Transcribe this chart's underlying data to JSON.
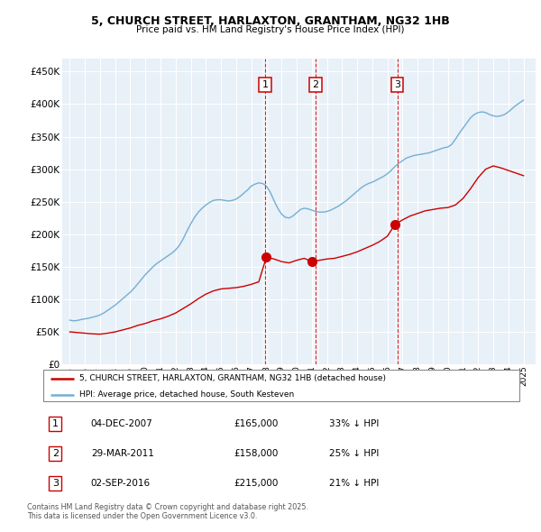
{
  "title": "5, CHURCH STREET, HARLAXTON, GRANTHAM, NG32 1HB",
  "subtitle": "Price paid vs. HM Land Registry's House Price Index (HPI)",
  "ylim": [
    0,
    470000
  ],
  "yticks": [
    0,
    50000,
    100000,
    150000,
    200000,
    250000,
    300000,
    350000,
    400000,
    450000
  ],
  "ytick_labels": [
    "£0",
    "£50K",
    "£100K",
    "£150K",
    "£200K",
    "£250K",
    "£300K",
    "£350K",
    "£400K",
    "£450K"
  ],
  "xlim_start": 1994.5,
  "xlim_end": 2025.8,
  "hpi_color": "#74afd3",
  "price_color": "#cc0000",
  "marker_color": "#cc0000",
  "vline_color": "#cc0000",
  "bg_color": "#e8f0f8",
  "grid_color": "#ffffff",
  "transactions": [
    {
      "id": 1,
      "date": "04-DEC-2007",
      "year": 2007.92,
      "price": 165000,
      "pct": "33% ↓ HPI"
    },
    {
      "id": 2,
      "date": "29-MAR-2011",
      "year": 2011.25,
      "price": 158000,
      "pct": "25% ↓ HPI"
    },
    {
      "id": 3,
      "date": "02-SEP-2016",
      "year": 2016.67,
      "price": 215000,
      "pct": "21% ↓ HPI"
    }
  ],
  "legend_label_price": "5, CHURCH STREET, HARLAXTON, GRANTHAM, NG32 1HB (detached house)",
  "legend_label_hpi": "HPI: Average price, detached house, South Kesteven",
  "footer": "Contains HM Land Registry data © Crown copyright and database right 2025.\nThis data is licensed under the Open Government Licence v3.0.",
  "hpi_data_x": [
    1995.0,
    1995.25,
    1995.5,
    1995.75,
    1996.0,
    1996.25,
    1996.5,
    1996.75,
    1997.0,
    1997.25,
    1997.5,
    1997.75,
    1998.0,
    1998.25,
    1998.5,
    1998.75,
    1999.0,
    1999.25,
    1999.5,
    1999.75,
    2000.0,
    2000.25,
    2000.5,
    2000.75,
    2001.0,
    2001.25,
    2001.5,
    2001.75,
    2002.0,
    2002.25,
    2002.5,
    2002.75,
    2003.0,
    2003.25,
    2003.5,
    2003.75,
    2004.0,
    2004.25,
    2004.5,
    2004.75,
    2005.0,
    2005.25,
    2005.5,
    2005.75,
    2006.0,
    2006.25,
    2006.5,
    2006.75,
    2007.0,
    2007.25,
    2007.5,
    2007.75,
    2008.0,
    2008.25,
    2008.5,
    2008.75,
    2009.0,
    2009.25,
    2009.5,
    2009.75,
    2010.0,
    2010.25,
    2010.5,
    2010.75,
    2011.0,
    2011.25,
    2011.5,
    2011.75,
    2012.0,
    2012.25,
    2012.5,
    2012.75,
    2013.0,
    2013.25,
    2013.5,
    2013.75,
    2014.0,
    2014.25,
    2014.5,
    2014.75,
    2015.0,
    2015.25,
    2015.5,
    2015.75,
    2016.0,
    2016.25,
    2016.5,
    2016.75,
    2017.0,
    2017.25,
    2017.5,
    2017.75,
    2018.0,
    2018.25,
    2018.5,
    2018.75,
    2019.0,
    2019.25,
    2019.5,
    2019.75,
    2020.0,
    2020.25,
    2020.5,
    2020.75,
    2021.0,
    2021.25,
    2021.5,
    2021.75,
    2022.0,
    2022.25,
    2022.5,
    2022.75,
    2023.0,
    2023.25,
    2023.5,
    2023.75,
    2024.0,
    2024.25,
    2024.5,
    2024.75,
    2025.0
  ],
  "hpi_data_y": [
    68000,
    67000,
    67500,
    69000,
    70000,
    71000,
    72500,
    74000,
    76000,
    79000,
    83000,
    87000,
    91000,
    96000,
    101000,
    106000,
    111000,
    117000,
    124000,
    131000,
    138000,
    144000,
    150000,
    155000,
    159000,
    163000,
    167000,
    171000,
    176000,
    183000,
    193000,
    205000,
    216000,
    226000,
    234000,
    240000,
    245000,
    249000,
    252000,
    253000,
    253000,
    252000,
    251000,
    252000,
    254000,
    258000,
    263000,
    268000,
    274000,
    277000,
    279000,
    278000,
    274000,
    265000,
    252000,
    240000,
    231000,
    226000,
    225000,
    228000,
    233000,
    238000,
    240000,
    239000,
    237000,
    235000,
    234000,
    234000,
    235000,
    237000,
    240000,
    243000,
    247000,
    251000,
    256000,
    261000,
    266000,
    271000,
    275000,
    278000,
    280000,
    283000,
    286000,
    289000,
    293000,
    298000,
    304000,
    309000,
    313000,
    317000,
    319000,
    321000,
    322000,
    323000,
    324000,
    325000,
    327000,
    329000,
    331000,
    333000,
    334000,
    338000,
    346000,
    355000,
    363000,
    371000,
    379000,
    384000,
    387000,
    388000,
    387000,
    384000,
    382000,
    381000,
    382000,
    384000,
    388000,
    393000,
    398000,
    402000,
    406000
  ],
  "price_data_x": [
    1995.0,
    1995.5,
    1996.0,
    1996.5,
    1997.0,
    1997.5,
    1998.0,
    1998.5,
    1999.0,
    1999.5,
    2000.0,
    2000.5,
    2001.0,
    2001.5,
    2002.0,
    2002.5,
    2003.0,
    2003.5,
    2004.0,
    2004.5,
    2005.0,
    2005.5,
    2006.0,
    2006.5,
    2007.0,
    2007.5,
    2008.0,
    2008.5,
    2009.0,
    2009.5,
    2010.0,
    2010.5,
    2011.0,
    2011.5,
    2012.0,
    2012.5,
    2013.0,
    2013.5,
    2014.0,
    2014.5,
    2015.0,
    2015.5,
    2016.0,
    2016.5,
    2017.0,
    2017.5,
    2018.0,
    2018.5,
    2019.0,
    2019.5,
    2020.0,
    2020.5,
    2021.0,
    2021.5,
    2022.0,
    2022.5,
    2023.0,
    2023.5,
    2024.0,
    2024.5,
    2025.0
  ],
  "price_data_y": [
    50000,
    49000,
    48000,
    47000,
    46500,
    48000,
    50000,
    53000,
    56000,
    60000,
    63000,
    67000,
    70000,
    74000,
    79000,
    86000,
    93000,
    101000,
    108000,
    113000,
    116000,
    117000,
    118000,
    120000,
    123000,
    127000,
    165000,
    162000,
    158000,
    156000,
    160000,
    163000,
    158000,
    160000,
    162000,
    163000,
    166000,
    169000,
    173000,
    178000,
    183000,
    189000,
    197000,
    215000,
    222000,
    228000,
    232000,
    236000,
    238000,
    240000,
    241000,
    245000,
    255000,
    270000,
    287000,
    300000,
    305000,
    302000,
    298000,
    294000,
    290000
  ]
}
